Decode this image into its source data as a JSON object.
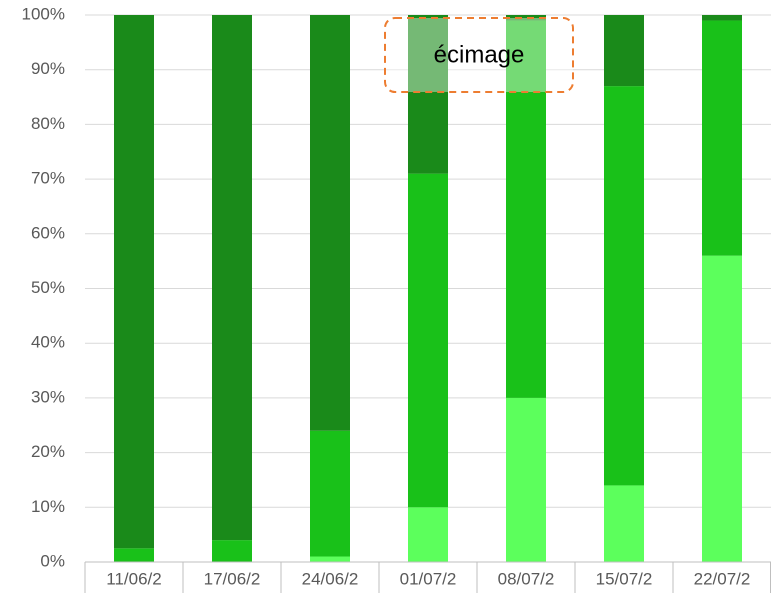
{
  "chart_data": {
    "type": "stacked_bar_100",
    "categories": [
      "11/06/2",
      "17/06/2",
      "24/06/2",
      "01/07/2",
      "08/07/2",
      "15/07/2",
      "22/07/2"
    ],
    "series": [
      {
        "color": "#5cff5c",
        "values": [
          0,
          0,
          1,
          10,
          30,
          14,
          56
        ]
      },
      {
        "color": "#19c119",
        "values": [
          2.5,
          4,
          23,
          61,
          69,
          73,
          43
        ]
      },
      {
        "color": "#1a8a1a",
        "values": [
          97.5,
          96,
          76,
          29,
          1,
          13,
          1
        ]
      }
    ],
    "ylim": [
      0,
      100
    ],
    "yticks": [
      {
        "value": 0,
        "label": "0%"
      },
      {
        "value": 10,
        "label": "10%"
      },
      {
        "value": 20,
        "label": "20%"
      },
      {
        "value": 30,
        "label": "30%"
      },
      {
        "value": 40,
        "label": "40%"
      },
      {
        "value": 50,
        "label": "50%"
      },
      {
        "value": 60,
        "label": "60%"
      },
      {
        "value": 70,
        "label": "70%"
      },
      {
        "value": 80,
        "label": "80%"
      },
      {
        "value": 90,
        "label": "90%"
      },
      {
        "value": 100,
        "label": "100%"
      }
    ],
    "grid": true,
    "annotation": "écimage"
  }
}
